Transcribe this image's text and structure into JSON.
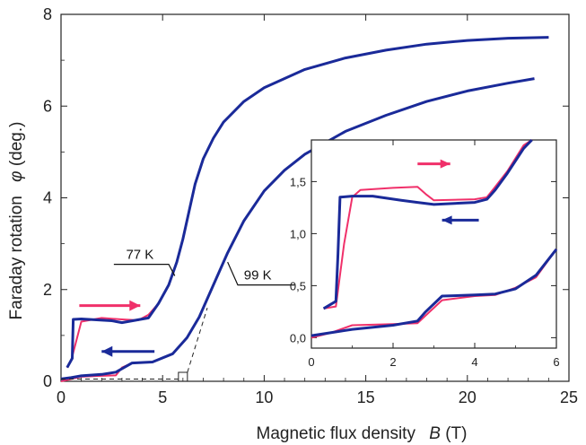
{
  "chart_data": [
    {
      "type": "line",
      "xlabel": "Magnetic flux density",
      "xlabel_var": "B",
      "xlabel_unit": "(T)",
      "ylabel": "Faraday rotation",
      "ylabel_var": "φ",
      "ylabel_unit": "(deg.)",
      "xlim": [
        0,
        25
      ],
      "ylim": [
        0,
        8
      ],
      "xticks": [
        0,
        5,
        10,
        15,
        20,
        25
      ],
      "yticks": [
        0,
        2,
        4,
        6,
        8
      ],
      "series_colors": {
        "up": "#f0306a",
        "down": "#1a2a99"
      },
      "annotations": [
        {
          "text": "77 K",
          "x": 3.2,
          "y": 2.55
        },
        {
          "text": "99 K",
          "x": 9.0,
          "y": 1.9
        }
      ],
      "curves": [
        {
          "label": "77 K",
          "up": [
            [
              0.3,
              0.3
            ],
            [
              0.5,
              0.45
            ],
            [
              1.0,
              1.3
            ],
            [
              2.0,
              1.38
            ],
            [
              3.0,
              1.35
            ],
            [
              3.8,
              1.33
            ],
            [
              4.3,
              1.45
            ],
            [
              4.8,
              1.7
            ],
            [
              5.3,
              2.1
            ],
            [
              5.7,
              2.6
            ],
            [
              6.0,
              3.1
            ],
            [
              6.3,
              3.7
            ],
            [
              6.6,
              4.3
            ],
            [
              7.0,
              4.85
            ],
            [
              7.5,
              5.3
            ],
            [
              8.0,
              5.65
            ],
            [
              9.0,
              6.1
            ],
            [
              10.0,
              6.4
            ],
            [
              12.0,
              6.8
            ],
            [
              14.0,
              7.05
            ],
            [
              16.0,
              7.22
            ],
            [
              18.0,
              7.35
            ],
            [
              20.0,
              7.43
            ],
            [
              22.0,
              7.48
            ],
            [
              24.0,
              7.5
            ]
          ],
          "down": [
            [
              24.0,
              7.5
            ],
            [
              22.0,
              7.48
            ],
            [
              20.0,
              7.43
            ],
            [
              18.0,
              7.35
            ],
            [
              16.0,
              7.22
            ],
            [
              14.0,
              7.05
            ],
            [
              12.0,
              6.8
            ],
            [
              10.0,
              6.4
            ],
            [
              9.0,
              6.1
            ],
            [
              8.0,
              5.65
            ],
            [
              7.5,
              5.3
            ],
            [
              7.0,
              4.85
            ],
            [
              6.6,
              4.3
            ],
            [
              6.3,
              3.7
            ],
            [
              6.0,
              3.1
            ],
            [
              5.7,
              2.6
            ],
            [
              5.3,
              2.1
            ],
            [
              4.8,
              1.7
            ],
            [
              4.3,
              1.38
            ],
            [
              3.0,
              1.28
            ],
            [
              2.5,
              1.32
            ],
            [
              1.0,
              1.36
            ],
            [
              0.6,
              1.35
            ],
            [
              0.55,
              0.5
            ],
            [
              0.3,
              0.3
            ]
          ]
        },
        {
          "label": "99 K",
          "up": [
            [
              0.0,
              0.0
            ],
            [
              0.5,
              0.05
            ],
            [
              1.0,
              0.1
            ],
            [
              2.0,
              0.12
            ],
            [
              2.7,
              0.13
            ],
            [
              3.0,
              0.3
            ],
            [
              3.5,
              0.4
            ],
            [
              4.5,
              0.42
            ],
            [
              5.5,
              0.6
            ],
            [
              6.2,
              0.95
            ],
            [
              6.8,
              1.4
            ],
            [
              7.5,
              2.1
            ],
            [
              8.2,
              2.8
            ],
            [
              9.0,
              3.5
            ],
            [
              10.0,
              4.15
            ],
            [
              11.0,
              4.6
            ],
            [
              12.0,
              4.95
            ],
            [
              14.0,
              5.45
            ],
            [
              16.0,
              5.8
            ],
            [
              18.0,
              6.1
            ],
            [
              20.0,
              6.33
            ],
            [
              22.0,
              6.5
            ],
            [
              23.3,
              6.6
            ]
          ],
          "down": [
            [
              23.3,
              6.6
            ],
            [
              22.0,
              6.5
            ],
            [
              20.0,
              6.33
            ],
            [
              18.0,
              6.1
            ],
            [
              16.0,
              5.8
            ],
            [
              14.0,
              5.45
            ],
            [
              12.0,
              4.95
            ],
            [
              11.0,
              4.6
            ],
            [
              10.0,
              4.15
            ],
            [
              9.0,
              3.5
            ],
            [
              8.2,
              2.8
            ],
            [
              7.5,
              2.1
            ],
            [
              6.8,
              1.4
            ],
            [
              6.2,
              0.95
            ],
            [
              5.5,
              0.6
            ],
            [
              4.5,
              0.42
            ],
            [
              3.5,
              0.4
            ],
            [
              2.7,
              0.2
            ],
            [
              2.0,
              0.15
            ],
            [
              1.0,
              0.12
            ],
            [
              0.5,
              0.08
            ],
            [
              0.0,
              0.05
            ]
          ]
        }
      ]
    },
    {
      "type": "line",
      "role": "inset",
      "xlim": [
        0,
        6
      ],
      "ylim": [
        -0.1,
        1.9
      ],
      "xticks": [
        0,
        2,
        4,
        6
      ],
      "yticks": [
        0.0,
        0.5,
        1.0,
        1.5
      ],
      "xtick_labels": [
        "0",
        "2",
        "4",
        "6"
      ],
      "ytick_labels": [
        "0,0",
        "0,5",
        "1,0",
        "1,5"
      ],
      "curves": [
        {
          "label": "77 K",
          "up": [
            [
              0.3,
              0.28
            ],
            [
              0.6,
              0.3
            ],
            [
              0.8,
              0.9
            ],
            [
              1.0,
              1.35
            ],
            [
              1.2,
              1.42
            ],
            [
              2.0,
              1.44
            ],
            [
              2.6,
              1.45
            ],
            [
              2.8,
              1.38
            ],
            [
              3.0,
              1.32
            ],
            [
              4.0,
              1.33
            ],
            [
              4.3,
              1.35
            ],
            [
              4.5,
              1.45
            ],
            [
              4.8,
              1.6
            ],
            [
              5.2,
              1.85
            ],
            [
              5.4,
              1.9
            ]
          ],
          "down": [
            [
              5.4,
              1.9
            ],
            [
              5.2,
              1.82
            ],
            [
              4.8,
              1.58
            ],
            [
              4.5,
              1.42
            ],
            [
              4.3,
              1.33
            ],
            [
              4.0,
              1.3
            ],
            [
              3.0,
              1.28
            ],
            [
              2.6,
              1.3
            ],
            [
              2.2,
              1.32
            ],
            [
              1.5,
              1.36
            ],
            [
              1.0,
              1.36
            ],
            [
              0.7,
              1.35
            ],
            [
              0.65,
              0.8
            ],
            [
              0.6,
              0.35
            ],
            [
              0.3,
              0.28
            ]
          ]
        },
        {
          "label": "99 K",
          "up": [
            [
              0.0,
              0.0
            ],
            [
              0.5,
              0.05
            ],
            [
              1.0,
              0.12
            ],
            [
              2.0,
              0.13
            ],
            [
              2.6,
              0.14
            ],
            [
              2.9,
              0.25
            ],
            [
              3.2,
              0.36
            ],
            [
              4.0,
              0.4
            ],
            [
              4.5,
              0.41
            ],
            [
              5.0,
              0.48
            ],
            [
              5.5,
              0.58
            ],
            [
              6.0,
              0.85
            ]
          ],
          "down": [
            [
              6.0,
              0.85
            ],
            [
              5.5,
              0.6
            ],
            [
              5.0,
              0.47
            ],
            [
              4.5,
              0.42
            ],
            [
              4.0,
              0.41
            ],
            [
              3.2,
              0.4
            ],
            [
              2.8,
              0.25
            ],
            [
              2.6,
              0.16
            ],
            [
              2.0,
              0.12
            ],
            [
              1.0,
              0.08
            ],
            [
              0.5,
              0.05
            ],
            [
              0.0,
              0.02
            ]
          ]
        }
      ]
    }
  ]
}
